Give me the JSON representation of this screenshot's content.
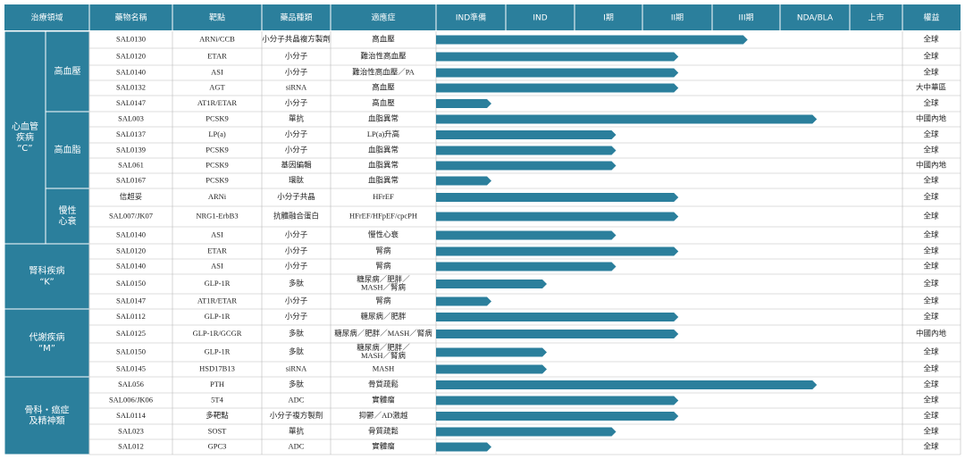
{
  "header": [
    "治療領域",
    "藥物名稱",
    "靶點",
    "藥品種類",
    "適應症",
    "IND準備",
    "IND",
    "I期",
    "II期",
    "III期",
    "NDA/BLA",
    "上市",
    "權益"
  ],
  "groups": [
    {
      "label": [
        "心血管",
        "疾病",
        "“C”"
      ],
      "subgroups": [
        {
          "label": [
            "高血壓"
          ],
          "rows": [
            {
              "drug": "SAL0130",
              "target": "ARNi/CCB",
              "kind": "小分子共晶複方製劑",
              "indication": [
                "高血壓"
              ],
              "progress": 4.5,
              "rights": "全球"
            },
            {
              "drug": "SAL0120",
              "target": "ETAR",
              "kind": "小分子",
              "indication": [
                "難治性高血壓"
              ],
              "progress": 3.5,
              "rights": "全球"
            },
            {
              "drug": "SAL0140",
              "target": "ASI",
              "kind": "小分子",
              "indication": [
                "難治性高血壓／PA"
              ],
              "progress": 3.5,
              "rights": "全球"
            },
            {
              "drug": "SAL0132",
              "target": "AGT",
              "kind": "siRNA",
              "indication": [
                "高血壓"
              ],
              "progress": 3.5,
              "rights": "大中華區"
            },
            {
              "drug": "SAL0147",
              "target": "AT1R/ETAR",
              "kind": "小分子",
              "indication": [
                "高血壓"
              ],
              "progress": 0.8,
              "rights": "全球"
            }
          ]
        },
        {
          "label": [
            "高血脂"
          ],
          "rows": [
            {
              "drug": "SAL003",
              "target": "PCSK9",
              "kind": "單抗",
              "indication": [
                "血脂異常"
              ],
              "progress": 5.5,
              "rights": "中國內地"
            },
            {
              "drug": "SAL0137",
              "target": "LP(a)",
              "kind": "小分子",
              "indication": [
                "LP(a)升高"
              ],
              "progress": 2.6,
              "rights": "全球"
            },
            {
              "drug": "SAL0139",
              "target": "PCSK9",
              "kind": "小分子",
              "indication": [
                "血脂異常"
              ],
              "progress": 2.6,
              "rights": "全球"
            },
            {
              "drug": "SAL061",
              "target": "PCSK9",
              "kind": "基因編輯",
              "indication": [
                "血脂異常"
              ],
              "progress": 2.6,
              "rights": "中國內地"
            },
            {
              "drug": "SAL0167",
              "target": "PCSK9",
              "kind": "環肽",
              "indication": [
                "血脂異常"
              ],
              "progress": 0.8,
              "rights": "全球"
            }
          ]
        },
        {
          "label": [
            "慢性",
            "心衰"
          ],
          "rows": [
            {
              "drug": "信超妥",
              "target": "ARNi",
              "kind": "小分子共晶",
              "indication": [
                "HFrEF"
              ],
              "progress": 3.5,
              "rights": "全球"
            },
            {
              "drug": "SAL007/JK07",
              "target": "NRG1-ErbB3",
              "kind": "抗體融合蛋白",
              "indication": [
                "HFrEF/HFpEF/cpcPH"
              ],
              "progress": 3.5,
              "rights": "全球"
            },
            {
              "drug": "SAL0140",
              "target": "ASI",
              "kind": "小分子",
              "indication": [
                "慢性心衰"
              ],
              "progress": 2.6,
              "rights": "全球"
            }
          ]
        }
      ]
    },
    {
      "label": [
        "腎科疾病",
        "“K”"
      ],
      "rows": [
        {
          "drug": "SAL0120",
          "target": "ETAR",
          "kind": "小分子",
          "indication": [
            "腎病"
          ],
          "progress": 3.5,
          "rights": "全球"
        },
        {
          "drug": "SAL0140",
          "target": "ASI",
          "kind": "小分子",
          "indication": [
            "腎病"
          ],
          "progress": 2.6,
          "rights": "全球"
        },
        {
          "drug": "SAL0150",
          "target": "GLP-1R",
          "kind": "多肽",
          "indication": [
            "糖尿病／肥胖／",
            "MASH／腎病"
          ],
          "progress": 1.6,
          "rights": "全球"
        },
        {
          "drug": "SAL0147",
          "target": "AT1R/ETAR",
          "kind": "小分子",
          "indication": [
            "腎病"
          ],
          "progress": 0.8,
          "rights": "全球"
        }
      ]
    },
    {
      "label": [
        "代謝疾病",
        "“M”"
      ],
      "rows": [
        {
          "drug": "SAL0112",
          "target": "GLP-1R",
          "kind": "小分子",
          "indication": [
            "糖尿病／肥胖"
          ],
          "progress": 3.5,
          "rights": "全球"
        },
        {
          "drug": "SAL0125",
          "target": "GLP-1R/GCGR",
          "kind": "多肽",
          "indication": [
            "糖尿病／肥胖／MASH／腎病"
          ],
          "progress": 3.5,
          "rights": "中國內地"
        },
        {
          "drug": "SAL0150",
          "target": "GLP-1R",
          "kind": "多肽",
          "indication": [
            "糖尿病／肥胖／",
            "MASH／腎病"
          ],
          "progress": 1.6,
          "rights": "全球"
        },
        {
          "drug": "SAL0145",
          "target": "HSD17B13",
          "kind": "siRNA",
          "indication": [
            "MASH"
          ],
          "progress": 1.6,
          "rights": "全球"
        }
      ]
    },
    {
      "label": [
        "骨科・癌症",
        "及精神類"
      ],
      "rows": [
        {
          "drug": "SAL056",
          "target": "PTH",
          "kind": "多肽",
          "indication": [
            "骨質疏鬆"
          ],
          "progress": 5.5,
          "rights": "全球"
        },
        {
          "drug": "SAL006/JK06",
          "target": "5T4",
          "kind": "ADC",
          "indication": [
            "實體瘤"
          ],
          "progress": 3.5,
          "rights": "全球"
        },
        {
          "drug": "SAL0114",
          "target": "多靶點",
          "kind": "小分子複方製劑",
          "indication": [
            "抑鬱／AD激越"
          ],
          "progress": 3.5,
          "rights": "全球"
        },
        {
          "drug": "SAL023",
          "target": "SOST",
          "kind": "單抗",
          "indication": [
            "骨質疏鬆"
          ],
          "progress": 2.6,
          "rights": "全球"
        },
        {
          "drug": "SAL012",
          "target": "GPC3",
          "kind": "ADC",
          "indication": [
            "實體瘤"
          ],
          "progress": 0.8,
          "rights": "全球"
        }
      ]
    }
  ]
}
